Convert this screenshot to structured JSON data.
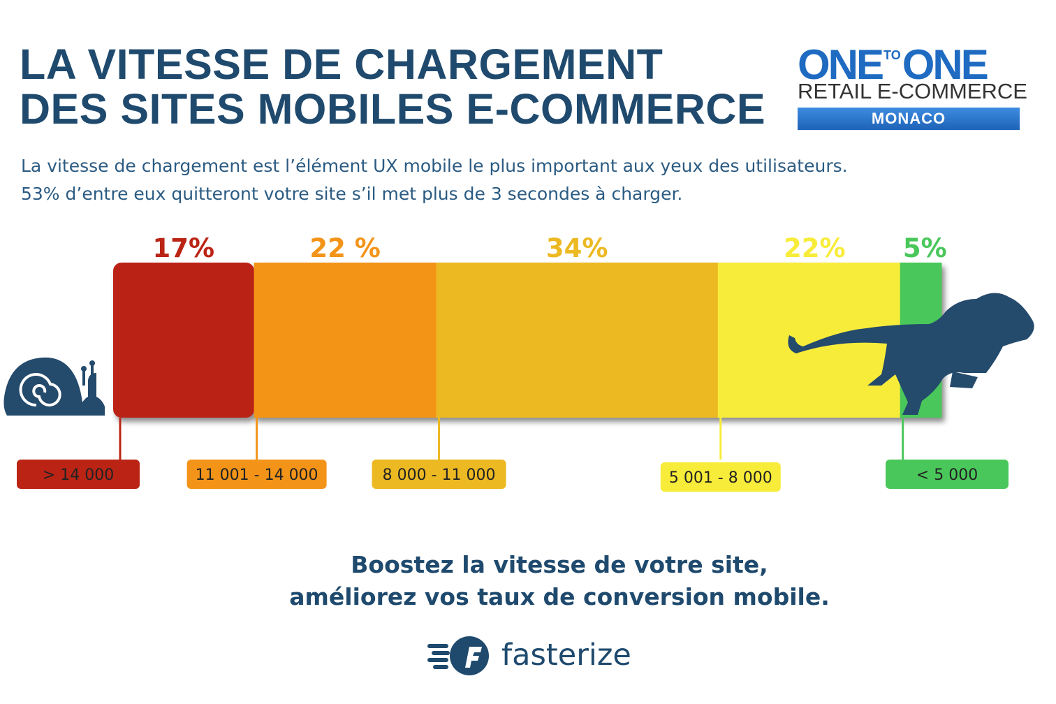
{
  "title": {
    "line1": "LA VITESSE DE CHARGEMENT",
    "line2": "DES SITES MOBILES E-COMMERCE"
  },
  "subtitle": {
    "line1": "La vitesse de chargement est l’élément UX mobile le plus important aux yeux des utilisateurs.",
    "line2": "53% d’entre eux quitteront votre site s’il met plus de 3 secondes à charger."
  },
  "logo": {
    "word1": "ONE",
    "word2": "TO",
    "word3": "ONE",
    "line2": "RETAIL E-COMMERCE",
    "line3": "MONACO"
  },
  "chart_data": {
    "type": "bar",
    "orientation": "horizontal-stacked",
    "segments": [
      {
        "label": "> 14 000",
        "value": 17,
        "value_text": "17%",
        "color": "#bb2415"
      },
      {
        "label": "11 001 - 14 000",
        "value": 22,
        "value_text": "22 %",
        "color": "#f39419"
      },
      {
        "label": "8 000 - 11 000",
        "value": 34,
        "value_text": "34%",
        "color": "#ecb922"
      },
      {
        "label": "5 001 - 8 000",
        "value": 22,
        "value_text": "22%",
        "color": "#f8ec3a"
      },
      {
        "label": "< 5 000",
        "value": 5,
        "value_text": "5%",
        "color": "#4ac75a"
      }
    ],
    "icons": {
      "slow": "snail-icon",
      "fast": "lion-icon"
    }
  },
  "cta": {
    "line1": "Boostez la vitesse de votre site,",
    "line2": "améliorez vos taux de conversion mobile."
  },
  "brand": {
    "name": "fasterize",
    "icon": "fasterize-logo-icon"
  }
}
